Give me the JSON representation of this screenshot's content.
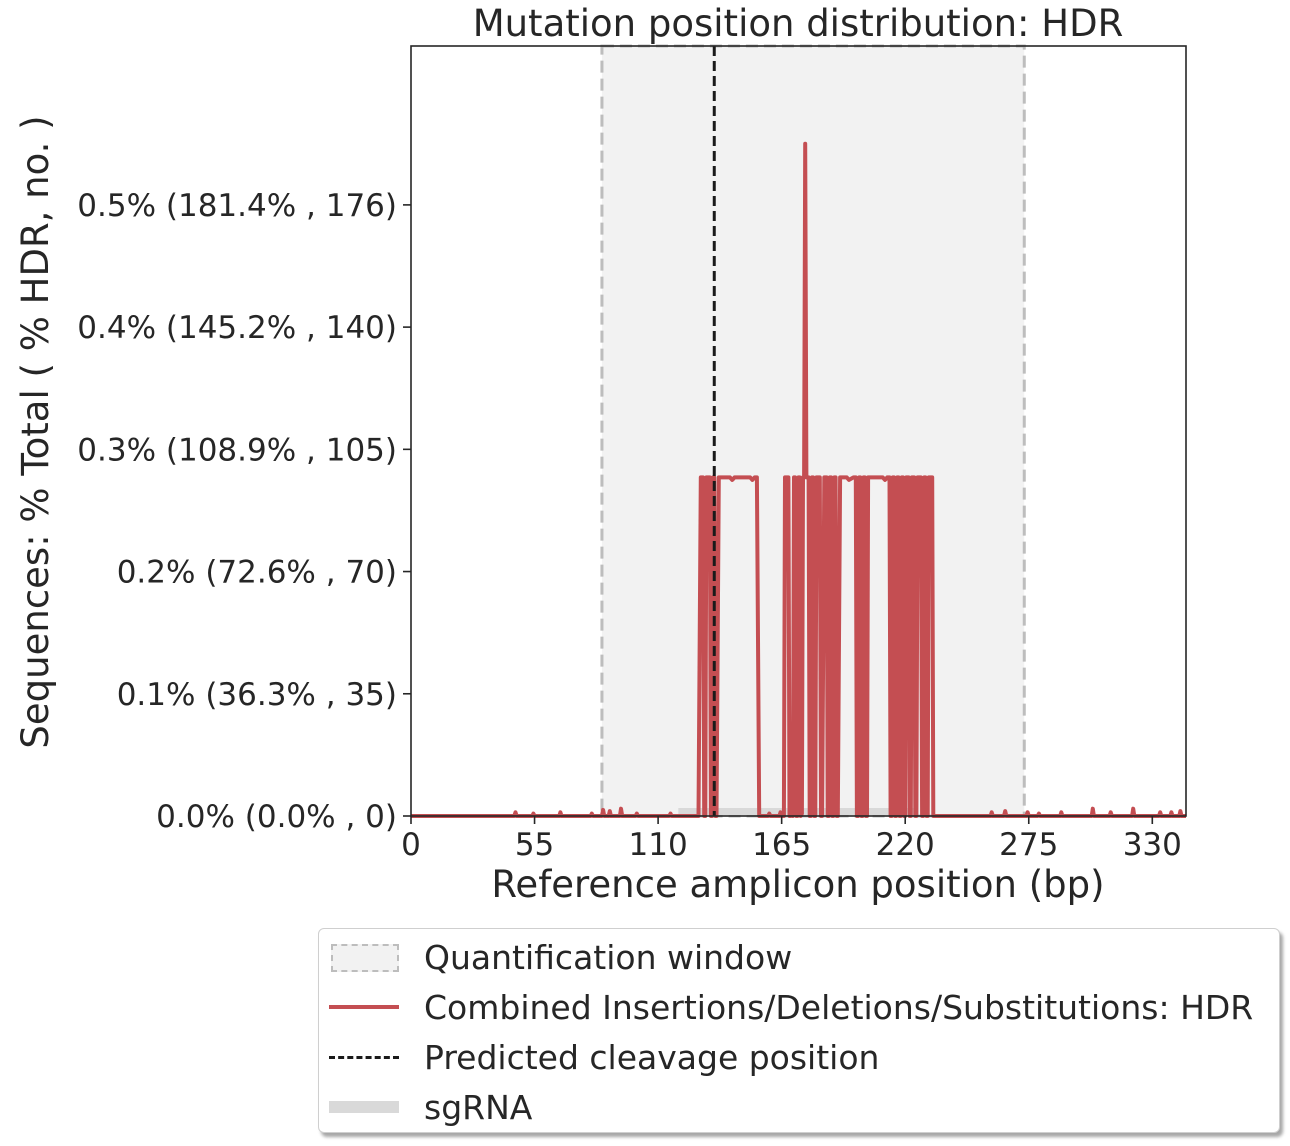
{
  "chart_data": {
    "type": "line",
    "title": "Mutation position distribution: HDR",
    "xlabel": "Reference amplicon position (bp)",
    "ylabel": "Sequences: % Total ( % HDR, no. )",
    "xlim": [
      0,
      345
    ],
    "ylim": [
      0,
      0.63
    ],
    "xticks": [
      0,
      55,
      110,
      165,
      220,
      275,
      330
    ],
    "yticks": [
      0.0,
      0.1,
      0.2,
      0.3,
      0.4,
      0.5
    ],
    "ytick_labels": [
      "0.0% (0.0% , 0)",
      "0.1% (36.3% , 35)",
      "0.2% (72.6% , 70)",
      "0.3% (108.9% , 105)",
      "0.4% (145.2% , 140)",
      "0.5% (181.4% , 176)"
    ],
    "quantification_window": [
      85,
      273
    ],
    "predicted_cleavage_position": 135,
    "sgrna": [
      119,
      225
    ],
    "series": [
      {
        "name": "Combined Insertions/Deletions/Substitutions: HDR",
        "color": "#c44e52",
        "points": [
          [
            0,
            0
          ],
          [
            46,
            0
          ],
          [
            46.5,
            0.003
          ],
          [
            47,
            0
          ],
          [
            54,
            0
          ],
          [
            54.5,
            0.002
          ],
          [
            55,
            0
          ],
          [
            66,
            0
          ],
          [
            66.5,
            0.003
          ],
          [
            67,
            0
          ],
          [
            80,
            0
          ],
          [
            80.5,
            0.002
          ],
          [
            81,
            0
          ],
          [
            85,
            0
          ],
          [
            85.5,
            0.005
          ],
          [
            86,
            0
          ],
          [
            88,
            0
          ],
          [
            88.5,
            0.004
          ],
          [
            89,
            0
          ],
          [
            93,
            0
          ],
          [
            93.5,
            0.006
          ],
          [
            94,
            0
          ],
          [
            100,
            0
          ],
          [
            100.5,
            0.002
          ],
          [
            101,
            0
          ],
          [
            115,
            0
          ],
          [
            115.5,
            0.002
          ],
          [
            116,
            0
          ],
          [
            128,
            0
          ],
          [
            129,
            0.277
          ],
          [
            130,
            0.277
          ],
          [
            130.5,
            0
          ],
          [
            131,
            0
          ],
          [
            131.5,
            0.277
          ],
          [
            133,
            0.277
          ],
          [
            133.5,
            0
          ],
          [
            134,
            0
          ],
          [
            134.5,
            0.277
          ],
          [
            135,
            0.277
          ],
          [
            135.5,
            0
          ],
          [
            136,
            0
          ],
          [
            137,
            0.277
          ],
          [
            142,
            0.277
          ],
          [
            143,
            0.275
          ],
          [
            143.5,
            0.276
          ],
          [
            144,
            0.277
          ],
          [
            151,
            0.277
          ],
          [
            152,
            0.275
          ],
          [
            153,
            0.277
          ],
          [
            154,
            0.277
          ],
          [
            155,
            0
          ],
          [
            159,
            0
          ],
          [
            159.5,
            0.002
          ],
          [
            160,
            0
          ],
          [
            164,
            0
          ],
          [
            164.5,
            0.003
          ],
          [
            165,
            0
          ],
          [
            166,
            0
          ],
          [
            166.5,
            0.277
          ],
          [
            168,
            0.277
          ],
          [
            168.5,
            0
          ],
          [
            169,
            0
          ],
          [
            169.5,
            0.004
          ],
          [
            170,
            0
          ],
          [
            170.5,
            0.277
          ],
          [
            171,
            0.277
          ],
          [
            171.5,
            0
          ],
          [
            172,
            0
          ],
          [
            172.5,
            0.277
          ],
          [
            173,
            0.277
          ],
          [
            173.5,
            0
          ],
          [
            174,
            0.002
          ],
          [
            174.5,
            0.277
          ],
          [
            175,
            0.277
          ],
          [
            175.5,
            0.55
          ],
          [
            176,
            0.277
          ],
          [
            177,
            0.277
          ],
          [
            177.5,
            0
          ],
          [
            178,
            0
          ],
          [
            178.5,
            0.277
          ],
          [
            179,
            0.277
          ],
          [
            179.5,
            0
          ],
          [
            180,
            0
          ],
          [
            180.5,
            0.277
          ],
          [
            182,
            0.277
          ],
          [
            182.5,
            0
          ],
          [
            183,
            0
          ],
          [
            184,
            0.277
          ],
          [
            185,
            0.277
          ],
          [
            185.5,
            0
          ],
          [
            186,
            0
          ],
          [
            186.5,
            0.277
          ],
          [
            187,
            0.277
          ],
          [
            187.5,
            0
          ],
          [
            188,
            0
          ],
          [
            188.5,
            0.277
          ],
          [
            189,
            0.277
          ],
          [
            189.5,
            0
          ],
          [
            190,
            0
          ],
          [
            191,
            0.277
          ],
          [
            194,
            0.277
          ],
          [
            195,
            0.275
          ],
          [
            197,
            0.277
          ],
          [
            198,
            0.277
          ],
          [
            198.5,
            0
          ],
          [
            199,
            0
          ],
          [
            199.5,
            0.277
          ],
          [
            200,
            0.277
          ],
          [
            200.5,
            0
          ],
          [
            201,
            0
          ],
          [
            201.5,
            0.277
          ],
          [
            202,
            0.277
          ],
          [
            202.5,
            0
          ],
          [
            203,
            0
          ],
          [
            203.5,
            0.277
          ],
          [
            206,
            0.277
          ],
          [
            207,
            0.277
          ],
          [
            210,
            0.277
          ],
          [
            211,
            0.275
          ],
          [
            212,
            0.277
          ],
          [
            213,
            0.277
          ],
          [
            213.5,
            0
          ],
          [
            214,
            0
          ],
          [
            214.5,
            0.277
          ],
          [
            215,
            0.277
          ],
          [
            215.5,
            0
          ],
          [
            216,
            0
          ],
          [
            216.5,
            0.277
          ],
          [
            217,
            0.277
          ],
          [
            217.5,
            0
          ],
          [
            218,
            0
          ],
          [
            218.5,
            0.277
          ],
          [
            219,
            0.277
          ],
          [
            219.5,
            0
          ],
          [
            220,
            0
          ],
          [
            220.5,
            0.277
          ],
          [
            221,
            0.277
          ],
          [
            221.5,
            0.277
          ],
          [
            222,
            0
          ],
          [
            222.5,
            0
          ],
          [
            223,
            0.277
          ],
          [
            224,
            0.277
          ],
          [
            224.5,
            0
          ],
          [
            225,
            0
          ],
          [
            225.5,
            0.277
          ],
          [
            227,
            0.277
          ],
          [
            227.5,
            0
          ],
          [
            228,
            0
          ],
          [
            228.5,
            0.277
          ],
          [
            229,
            0.277
          ],
          [
            229.5,
            0
          ],
          [
            230,
            0
          ],
          [
            230.5,
            0.277
          ],
          [
            232,
            0.277
          ],
          [
            232.5,
            0
          ],
          [
            258,
            0
          ],
          [
            258.5,
            0.003
          ],
          [
            259,
            0
          ],
          [
            264,
            0
          ],
          [
            264.5,
            0.004
          ],
          [
            265,
            0
          ],
          [
            274,
            0
          ],
          [
            274.5,
            0.003
          ],
          [
            275,
            0
          ],
          [
            279,
            0
          ],
          [
            279.5,
            0.002
          ],
          [
            280,
            0
          ],
          [
            289,
            0
          ],
          [
            289.5,
            0.003
          ],
          [
            290,
            0
          ],
          [
            303,
            0
          ],
          [
            303.5,
            0.006
          ],
          [
            304,
            0
          ],
          [
            311,
            0
          ],
          [
            311.5,
            0.003
          ],
          [
            312,
            0
          ],
          [
            321,
            0
          ],
          [
            321.5,
            0.006
          ],
          [
            322,
            0
          ],
          [
            333,
            0
          ],
          [
            333.5,
            0.003
          ],
          [
            334,
            0
          ],
          [
            338,
            0
          ],
          [
            338.5,
            0.003
          ],
          [
            339,
            0
          ],
          [
            342,
            0
          ],
          [
            342.5,
            0.004
          ],
          [
            343,
            0
          ],
          [
            345,
            0
          ]
        ]
      }
    ],
    "legend": {
      "placement": "below",
      "entries": [
        "Quantification window",
        "Combined Insertions/Deletions/Substitutions: HDR",
        "Predicted cleavage position",
        "sgRNA"
      ]
    },
    "grid": false
  },
  "colors": {
    "line": "#c44e52",
    "quant_fill": "#f2f2f2",
    "quant_edge": "#bdbdbd",
    "cleavage": "#1a1a1a",
    "sgrna": "#d9d9d9",
    "text": "#262626"
  }
}
